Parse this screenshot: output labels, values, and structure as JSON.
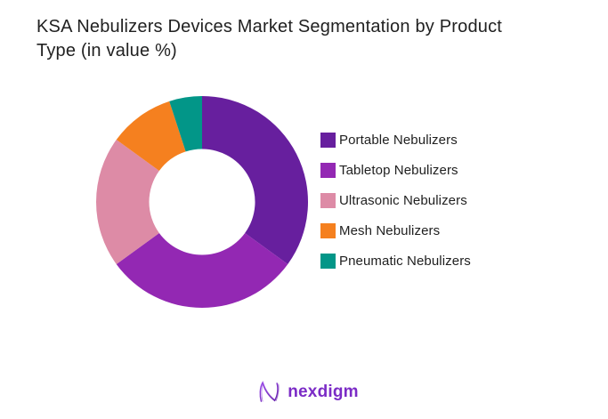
{
  "header": {
    "title_line1": "KSA Nebulizers Devices Market Segmentation by Product",
    "title_line2": "Type (in value %)"
  },
  "chart_data": {
    "type": "pie",
    "variant": "donut",
    "title": "KSA Nebulizers Devices Market Segmentation by Product Type (in value %)",
    "categories": [
      "Portable Nebulizers",
      "Tabletop Nebulizers",
      "Ultrasonic Nebulizers",
      "Mesh Nebulizers",
      "Pneumatic Nebulizers"
    ],
    "values": [
      35,
      30,
      20,
      10,
      5
    ],
    "unit": "%",
    "colors": [
      "#671F9E",
      "#9328B3",
      "#DD8BA6",
      "#F5801F",
      "#029688"
    ],
    "start_angle_deg": 0,
    "direction": "clockwise",
    "inner_radius_ratio": 0.5,
    "legend_position": "right",
    "data_labels": false
  },
  "footer": {
    "brand": "nexdigm",
    "brand_color": "#7B2BC6"
  }
}
